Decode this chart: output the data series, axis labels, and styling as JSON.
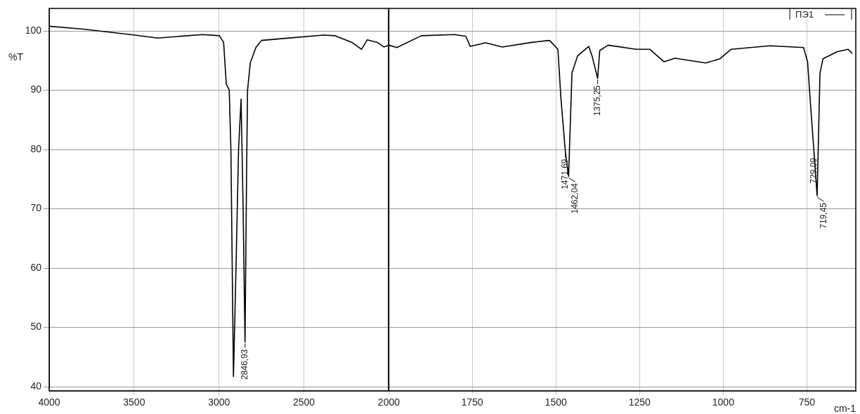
{
  "chart_data": [
    {
      "type": "line",
      "ylabel": "%T",
      "xlim": [
        4000,
        2000
      ],
      "xticks": [
        4000,
        3500,
        3000,
        2500,
        2000
      ],
      "ylim": [
        39.3,
        103.8
      ],
      "yticks": [
        40,
        50,
        60,
        70,
        80,
        90,
        100
      ],
      "grid": true,
      "marker": "none",
      "series": [
        {
          "color": "#000000",
          "x": [
            4000,
            3800,
            3495,
            3362,
            3097,
            2998,
            2973,
            2957,
            2940,
            2930,
            2915,
            2900,
            2885,
            2870,
            2858,
            2846.93,
            2838,
            2832,
            2816,
            2783,
            2750,
            2634,
            2385,
            2319,
            2219,
            2161,
            2128,
            2070,
            2029,
            2000
          ],
          "values": [
            100.8,
            100.3,
            99.3,
            98.8,
            99.4,
            99.2,
            98.1,
            91,
            90.1,
            80,
            41.7,
            60,
            80,
            88.5,
            70,
            47.5,
            75,
            90,
            94.6,
            97.2,
            98.4,
            98.7,
            99.3,
            99.2,
            98.1,
            96.9,
            98.5,
            98.1,
            97.3,
            97.6
          ]
        }
      ],
      "annotations": [
        {
          "text": "2846,93",
          "x": 2846.93,
          "y": 47.5
        }
      ]
    },
    {
      "type": "line",
      "xlabel": "cm-1",
      "xlim": [
        2000,
        604
      ],
      "xticks": [
        {
          "value": 2000,
          "label": null
        },
        1750,
        1500,
        1250,
        1000,
        750
      ],
      "ylim": [
        39.3,
        103.8
      ],
      "yticks": [
        40,
        50,
        60,
        70,
        80,
        90,
        100
      ],
      "tick_labels": "x",
      "grid": true,
      "marker": "none",
      "legend": "top right",
      "series": [
        {
          "name": "ПЭ1",
          "color": "#000000",
          "x": [
            2000,
            1975,
            1902,
            1802,
            1769,
            1756,
            1710,
            1660,
            1569,
            1519,
            1494,
            1485,
            1471.69,
            1462.04,
            1452,
            1435,
            1402,
            1392,
            1375.25,
            1369,
            1344,
            1260,
            1219,
            1177,
            1144,
            1052,
            1010,
            977,
            860,
            760,
            748,
            740,
            729.09,
            719.45,
            711,
            702,
            660,
            627,
            614
          ],
          "values": [
            97.6,
            97.2,
            99.2,
            99.4,
            99.1,
            97.4,
            98,
            97.3,
            98.1,
            98.4,
            96.9,
            88.7,
            79.6,
            75.5,
            92.9,
            95.8,
            97.4,
            95.8,
            92,
            96.7,
            97.6,
            96.9,
            96.9,
            94.8,
            95.4,
            94.6,
            95.3,
            96.9,
            97.5,
            97.2,
            94.8,
            88.2,
            79.8,
            72.2,
            92.9,
            95.3,
            96.5,
            96.9,
            96.2
          ]
        }
      ],
      "annotations": [
        {
          "text": "1471,69",
          "x": 1471.69,
          "y": 79.6
        },
        {
          "text": "1462,04",
          "x": 1462.04,
          "y": 75.5
        },
        {
          "text": "1375,25",
          "x": 1375.25,
          "y": 92
        },
        {
          "text": "729,09",
          "x": 729.09,
          "y": 79.8
        },
        {
          "text": "719,45",
          "x": 719.45,
          "y": 72.2
        }
      ]
    }
  ]
}
